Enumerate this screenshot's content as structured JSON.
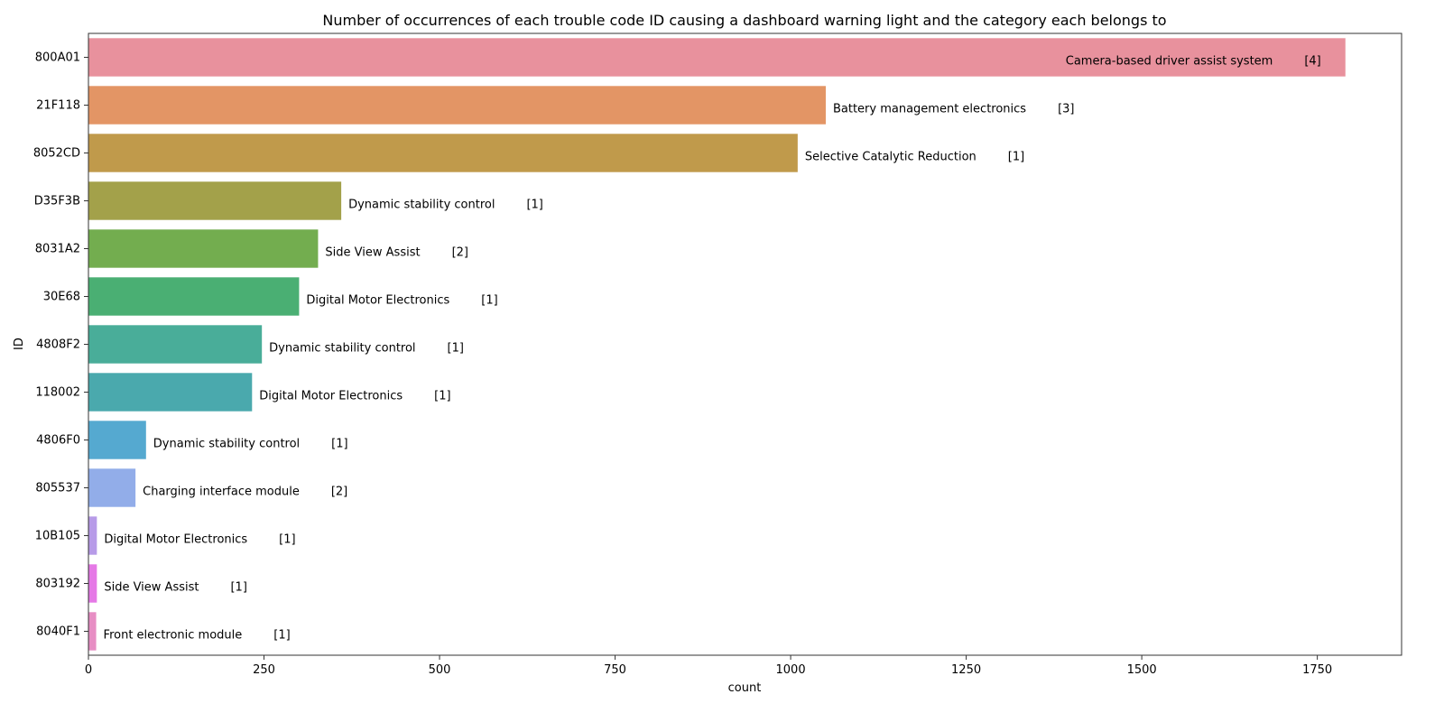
{
  "chart_data": {
    "type": "bar",
    "orientation": "horizontal",
    "title": "Number of occurrences of each trouble code ID causing a dashboard warning light and the category each belongs to",
    "xlabel": "count",
    "ylabel": "ID",
    "xlim": [
      0,
      1870
    ],
    "xticks": [
      0,
      250,
      500,
      750,
      1000,
      1250,
      1500,
      1750
    ],
    "grid": false,
    "categories": [
      "800A01",
      "21F118",
      "8052CD",
      "D35F3B",
      "8031A2",
      "30E68",
      "4808F2",
      "118002",
      "4806F0",
      "805537",
      "10B105",
      "803192",
      "8040F1"
    ],
    "values": [
      1790,
      1050,
      1010,
      360,
      327,
      300,
      247,
      233,
      82,
      67,
      12,
      12,
      11
    ],
    "bar_labels": [
      "Camera-based driver assist system",
      "Battery management electronics",
      "Selective Catalytic Reduction",
      "Dynamic stability control",
      "Side View Assist",
      "Digital Motor Electronics",
      "Dynamic stability control",
      "Digital Motor Electronics",
      "Dynamic stability control",
      "Charging interface module",
      "Digital Motor Electronics",
      "Side View Assist",
      "Front electronic module"
    ],
    "bar_counts": [
      "[4]",
      "[3]",
      "[1]",
      "[1]",
      "[2]",
      "[1]",
      "[1]",
      "[1]",
      "[1]",
      "[2]",
      "[1]",
      "[1]",
      "[1]"
    ],
    "colors": [
      "#e8919d",
      "#e39565",
      "#c09a4b",
      "#a3a14a",
      "#73ad4f",
      "#4aaf73",
      "#49ad99",
      "#4aa9ad",
      "#55a9d0",
      "#92ade9",
      "#b79be8",
      "#e579e6",
      "#e78ec4"
    ]
  }
}
